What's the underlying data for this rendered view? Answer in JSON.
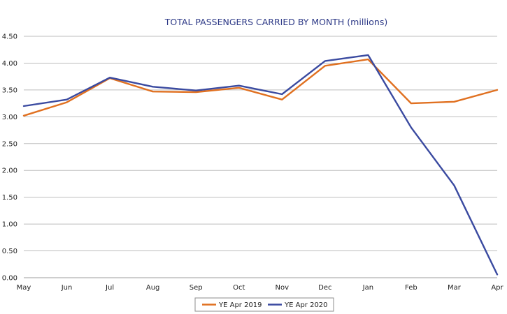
{
  "chart_data": {
    "type": "line",
    "title": "TOTAL PASSENGERS CARRIED BY MONTH (millions)",
    "xlabel": "",
    "ylabel": "",
    "categories": [
      "May",
      "Jun",
      "Jul",
      "Aug",
      "Sep",
      "Oct",
      "Nov",
      "Dec",
      "Jan",
      "Feb",
      "Mar",
      "Apr"
    ],
    "ylim": [
      0,
      4.5
    ],
    "yticks": [
      "0.00",
      "0.50",
      "1.00",
      "1.50",
      "2.00",
      "2.50",
      "3.00",
      "3.50",
      "4.00",
      "4.50"
    ],
    "grid": true,
    "legend_position": "bottom",
    "series": [
      {
        "name": "YE Apr 2019",
        "color": "#e07020",
        "values": [
          3.02,
          3.27,
          3.72,
          3.47,
          3.46,
          3.54,
          3.32,
          3.95,
          4.07,
          3.25,
          3.28,
          3.5
        ]
      },
      {
        "name": "YE Apr 2020",
        "color": "#3a4aa0",
        "values": [
          3.2,
          3.32,
          3.73,
          3.56,
          3.49,
          3.58,
          3.42,
          4.04,
          4.15,
          2.8,
          1.72,
          0.06
        ]
      }
    ]
  }
}
